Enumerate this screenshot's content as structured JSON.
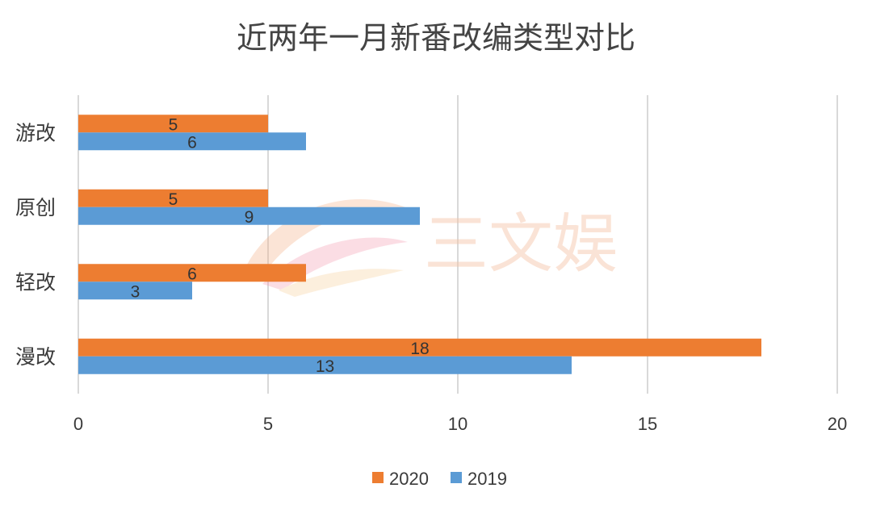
{
  "chart_data": {
    "type": "bar",
    "orientation": "horizontal",
    "title": "近两年一月新番改编类型对比",
    "categories": [
      "游改",
      "原创",
      "轻改",
      "漫改"
    ],
    "series": [
      {
        "name": "2020",
        "values": [
          5,
          5,
          6,
          18
        ],
        "color": "#ed7d31"
      },
      {
        "name": "2019",
        "values": [
          6,
          9,
          3,
          13
        ],
        "color": "#5b9bd5"
      }
    ],
    "xlim": [
      0,
      20
    ],
    "xticks": [
      0,
      5,
      10,
      15,
      20
    ],
    "xlabel": "",
    "ylabel": "",
    "grid": "vertical",
    "legend_position": "bottom"
  },
  "watermark": {
    "text": "三文娱",
    "colors": [
      "#f5b48c",
      "#f4a0b4",
      "#f9d2a0"
    ]
  }
}
